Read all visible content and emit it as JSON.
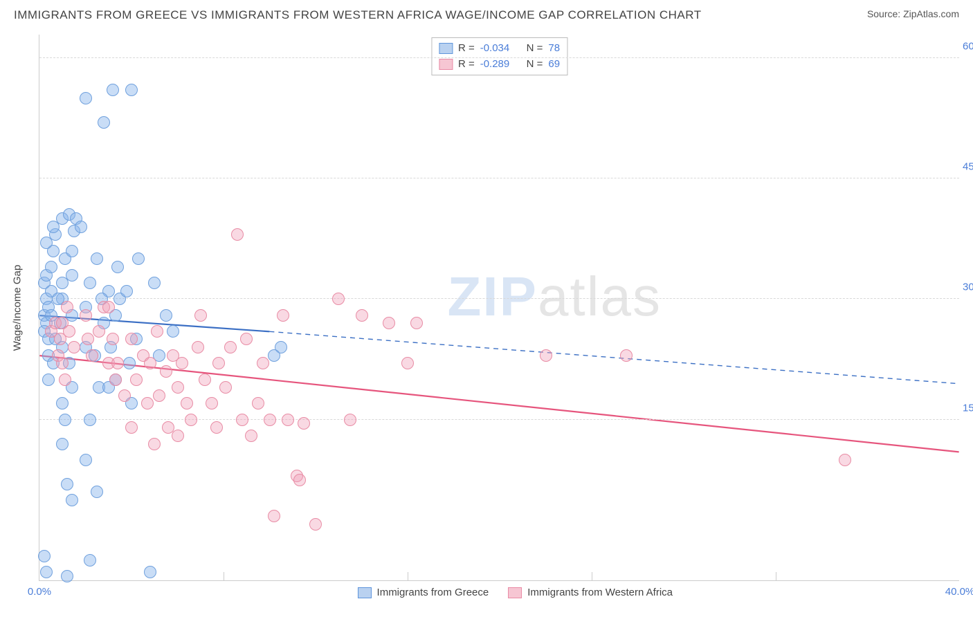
{
  "header": {
    "title": "IMMIGRANTS FROM GREECE VS IMMIGRANTS FROM WESTERN AFRICA WAGE/INCOME GAP CORRELATION CHART",
    "source_prefix": "Source: ",
    "source_name": "ZipAtlas.com"
  },
  "watermark": {
    "zip": "ZIP",
    "atlas": "atlas"
  },
  "axes": {
    "y_title": "Wage/Income Gap",
    "x_min": 0,
    "x_max": 40,
    "y_min": -5,
    "y_max": 63,
    "y_ticks": [
      {
        "v": 15,
        "label": "15.0%"
      },
      {
        "v": 30,
        "label": "30.0%"
      },
      {
        "v": 45,
        "label": "45.0%"
      },
      {
        "v": 60,
        "label": "60.0%"
      }
    ],
    "x_ticks": [
      {
        "v": 0,
        "label": "0.0%"
      },
      {
        "v": 8,
        "label": ""
      },
      {
        "v": 16,
        "label": ""
      },
      {
        "v": 24,
        "label": ""
      },
      {
        "v": 32,
        "label": ""
      },
      {
        "v": 40,
        "label": "40.0%"
      }
    ],
    "grid_color": "#d8d8d8"
  },
  "legend_top": {
    "rows": [
      {
        "swatch_fill": "#b9d1f0",
        "swatch_border": "#5f95db",
        "r_label": "R =",
        "r_value": "-0.034",
        "n_label": "N =",
        "n_value": "78"
      },
      {
        "swatch_fill": "#f6c6d3",
        "swatch_border": "#e98aa5",
        "r_label": "R =",
        "r_value": "-0.289",
        "n_label": "N =",
        "n_value": "69"
      }
    ]
  },
  "legend_bottom": {
    "items": [
      {
        "swatch_fill": "#b9d1f0",
        "swatch_border": "#5f95db",
        "label": "Immigrants from Greece"
      },
      {
        "swatch_fill": "#f6c6d3",
        "swatch_border": "#e98aa5",
        "label": "Immigrants from Western Africa"
      }
    ]
  },
  "series": [
    {
      "name": "greece",
      "marker_fill": "rgba(135,180,235,0.45)",
      "marker_stroke": "#6fa0dd",
      "marker_radius": 9,
      "trend": {
        "solid_x1": 0,
        "solid_y1": 28,
        "solid_x2": 10,
        "solid_y2": 26,
        "dash_x2": 40,
        "dash_y2": 19.5,
        "color": "#3b6fc4",
        "width": 2.2
      },
      "points": [
        [
          0.2,
          28
        ],
        [
          0.3,
          30
        ],
        [
          0.2,
          32
        ],
        [
          0.3,
          33
        ],
        [
          0.4,
          29
        ],
        [
          0.3,
          27
        ],
        [
          0.5,
          31
        ],
        [
          0.2,
          26
        ],
        [
          0.4,
          25
        ],
        [
          0.5,
          28
        ],
        [
          0.2,
          -2
        ],
        [
          0.3,
          -4
        ],
        [
          1.2,
          -4.5
        ],
        [
          4.8,
          -4
        ],
        [
          2.2,
          -2.5
        ],
        [
          0.5,
          34
        ],
        [
          0.6,
          36
        ],
        [
          0.7,
          38
        ],
        [
          0.6,
          39
        ],
        [
          1.0,
          40
        ],
        [
          1.3,
          40.5
        ],
        [
          1.5,
          38.5
        ],
        [
          1.6,
          40
        ],
        [
          1.8,
          39
        ],
        [
          2.0,
          55
        ],
        [
          3.2,
          56
        ],
        [
          4.0,
          56
        ],
        [
          2.8,
          52
        ],
        [
          1.0,
          32
        ],
        [
          1.0,
          30
        ],
        [
          1.4,
          33
        ],
        [
          1.4,
          28
        ],
        [
          1.0,
          17
        ],
        [
          1.1,
          15
        ],
        [
          1.4,
          19
        ],
        [
          1.0,
          12
        ],
        [
          1.2,
          7
        ],
        [
          1.4,
          5
        ],
        [
          2.0,
          29
        ],
        [
          2.2,
          32
        ],
        [
          2.5,
          35
        ],
        [
          2.8,
          27
        ],
        [
          2.4,
          23
        ],
        [
          2.6,
          19
        ],
        [
          2.2,
          15
        ],
        [
          2.0,
          10
        ],
        [
          2.5,
          6
        ],
        [
          3.0,
          31
        ],
        [
          3.3,
          28
        ],
        [
          3.5,
          30
        ],
        [
          3.0,
          19
        ],
        [
          4.3,
          35
        ],
        [
          3.8,
          31
        ],
        [
          4.2,
          25
        ],
        [
          5.0,
          32
        ],
        [
          5.5,
          28
        ],
        [
          5.2,
          23
        ],
        [
          5.8,
          26
        ],
        [
          10.5,
          24
        ],
        [
          10.2,
          23
        ],
        [
          0.4,
          20
        ],
        [
          0.4,
          23
        ],
        [
          0.6,
          22
        ],
        [
          0.7,
          25
        ],
        [
          0.8,
          30
        ],
        [
          0.9,
          27
        ],
        [
          1.0,
          24
        ],
        [
          1.3,
          22
        ],
        [
          1.1,
          35
        ],
        [
          1.4,
          36
        ],
        [
          2.0,
          24
        ],
        [
          2.7,
          30
        ],
        [
          3.4,
          34
        ],
        [
          3.1,
          24
        ],
        [
          3.3,
          20
        ],
        [
          3.9,
          22
        ],
        [
          4.0,
          17
        ],
        [
          0.3,
          37
        ]
      ]
    },
    {
      "name": "western_africa",
      "marker_fill": "rgba(240,160,185,0.40)",
      "marker_stroke": "#e88ba4",
      "marker_radius": 9,
      "trend": {
        "solid_x1": 0,
        "solid_y1": 23,
        "solid_x2": 40,
        "solid_y2": 11,
        "color": "#e6557d",
        "width": 2.2
      },
      "points": [
        [
          0.5,
          26
        ],
        [
          0.7,
          27
        ],
        [
          0.9,
          25
        ],
        [
          0.8,
          23
        ],
        [
          1.0,
          22
        ],
        [
          1.0,
          27
        ],
        [
          1.2,
          29
        ],
        [
          1.3,
          26
        ],
        [
          1.5,
          24
        ],
        [
          1.1,
          20
        ],
        [
          2.0,
          28
        ],
        [
          2.1,
          25
        ],
        [
          2.3,
          23
        ],
        [
          2.6,
          26
        ],
        [
          2.8,
          29
        ],
        [
          3.0,
          22
        ],
        [
          3.2,
          25
        ],
        [
          3.3,
          20
        ],
        [
          3.7,
          18
        ],
        [
          3.4,
          22
        ],
        [
          4.0,
          25
        ],
        [
          4.2,
          20
        ],
        [
          4.5,
          23
        ],
        [
          4.7,
          17
        ],
        [
          4.8,
          22
        ],
        [
          5.1,
          26
        ],
        [
          5.2,
          18
        ],
        [
          5.5,
          21
        ],
        [
          5.8,
          23
        ],
        [
          5.6,
          14
        ],
        [
          6.0,
          19
        ],
        [
          6.2,
          22
        ],
        [
          6.4,
          17
        ],
        [
          6.6,
          15
        ],
        [
          6.9,
          24
        ],
        [
          7.0,
          28
        ],
        [
          7.2,
          20
        ],
        [
          7.5,
          17
        ],
        [
          7.7,
          14
        ],
        [
          7.8,
          22
        ],
        [
          8.1,
          19
        ],
        [
          8.3,
          24
        ],
        [
          8.6,
          38
        ],
        [
          8.8,
          15
        ],
        [
          9.0,
          25
        ],
        [
          9.2,
          13
        ],
        [
          9.5,
          17
        ],
        [
          9.7,
          22
        ],
        [
          10.0,
          15
        ],
        [
          10.6,
          28
        ],
        [
          11.2,
          8
        ],
        [
          11.3,
          7.5
        ],
        [
          12.0,
          2
        ],
        [
          10.2,
          3
        ],
        [
          10.8,
          15
        ],
        [
          11.5,
          14.5
        ],
        [
          13.0,
          30
        ],
        [
          14.0,
          28
        ],
        [
          15.2,
          27
        ],
        [
          13.5,
          15
        ],
        [
          16.0,
          22
        ],
        [
          16.4,
          27
        ],
        [
          22.0,
          23
        ],
        [
          25.5,
          23
        ],
        [
          35.0,
          10
        ],
        [
          3.0,
          29
        ],
        [
          4.0,
          14
        ],
        [
          5.0,
          12
        ],
        [
          6.0,
          13
        ]
      ]
    }
  ]
}
